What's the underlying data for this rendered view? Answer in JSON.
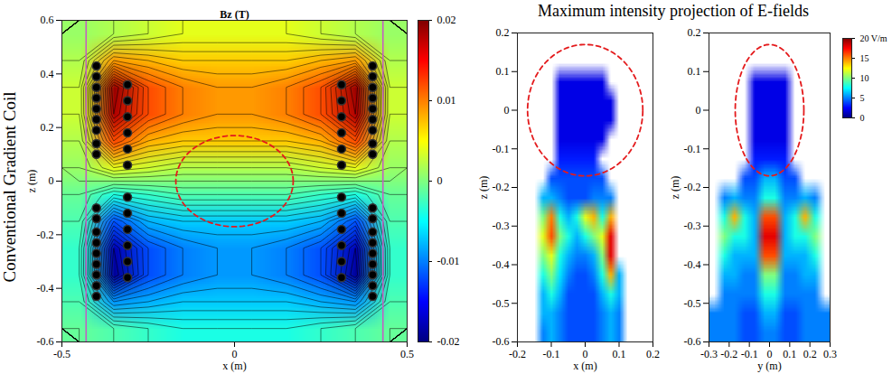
{
  "chart_data": [
    {
      "type": "heatmap",
      "row_label": "Conventional Gradient Coil",
      "title": "Bz (T)",
      "x_label": "x (m)",
      "y_label": "z (m)",
      "xlim": [
        -0.5,
        0.5
      ],
      "ylim": [
        -0.6,
        0.6
      ],
      "xticks": [
        -0.5,
        0,
        0.5
      ],
      "yticks": [
        -0.6,
        -0.4,
        -0.2,
        0,
        0.2,
        0.4,
        0.6
      ],
      "color_range": [
        -0.02,
        0.02
      ],
      "color_ticks": [
        -0.02,
        -0.01,
        0,
        0.01,
        0.02
      ],
      "cells": {
        "col_centers": [
          -0.45,
          -0.35,
          -0.25,
          -0.15,
          -0.05,
          0.05,
          0.15,
          0.25,
          0.35,
          0.45
        ],
        "row_centers": [
          0.55,
          0.45,
          0.35,
          0.25,
          0.15,
          0.05,
          -0.05,
          -0.15,
          -0.25,
          -0.35,
          -0.45,
          -0.55
        ],
        "values": [
          [
            0.001,
            0.002,
            0.003,
            0.004,
            0.004,
            0.004,
            0.004,
            0.003,
            0.002,
            0.001
          ],
          [
            0.002,
            0.009,
            0.008,
            0.007,
            0.007,
            0.007,
            0.007,
            0.008,
            0.009,
            0.002
          ],
          [
            0.003,
            0.019,
            0.012,
            0.01,
            0.009,
            0.009,
            0.01,
            0.012,
            0.019,
            0.003
          ],
          [
            0.003,
            0.018,
            0.012,
            0.01,
            0.009,
            0.009,
            0.01,
            0.012,
            0.018,
            0.003
          ],
          [
            0.002,
            0.012,
            0.008,
            0.007,
            0.007,
            0.007,
            0.007,
            0.008,
            0.012,
            0.002
          ],
          [
            0.001,
            0.004,
            0.003,
            0.002,
            0.002,
            0.002,
            0.002,
            0.003,
            0.004,
            0.001
          ],
          [
            -0.001,
            -0.004,
            -0.003,
            -0.002,
            -0.002,
            -0.002,
            -0.002,
            -0.003,
            -0.004,
            -0.001
          ],
          [
            -0.002,
            -0.012,
            -0.008,
            -0.007,
            -0.007,
            -0.007,
            -0.007,
            -0.008,
            -0.012,
            -0.002
          ],
          [
            -0.003,
            -0.018,
            -0.012,
            -0.01,
            -0.009,
            -0.009,
            -0.01,
            -0.012,
            -0.018,
            -0.003
          ],
          [
            -0.003,
            -0.019,
            -0.012,
            -0.01,
            -0.009,
            -0.009,
            -0.01,
            -0.012,
            -0.019,
            -0.003
          ],
          [
            -0.002,
            -0.009,
            -0.008,
            -0.007,
            -0.007,
            -0.007,
            -0.007,
            -0.008,
            -0.009,
            -0.002
          ],
          [
            -0.001,
            -0.002,
            -0.003,
            -0.004,
            -0.004,
            -0.004,
            -0.004,
            -0.003,
            -0.002,
            -0.001
          ]
        ]
      },
      "coil_wires": [
        [
          -0.4,
          0.43
        ],
        [
          -0.4,
          0.39
        ],
        [
          -0.4,
          0.35
        ],
        [
          -0.4,
          0.31
        ],
        [
          -0.4,
          0.27
        ],
        [
          -0.4,
          0.23
        ],
        [
          -0.4,
          0.19
        ],
        [
          -0.4,
          0.14
        ],
        [
          -0.4,
          0.1
        ],
        [
          0.4,
          0.43
        ],
        [
          0.4,
          0.39
        ],
        [
          0.4,
          0.35
        ],
        [
          0.4,
          0.31
        ],
        [
          0.4,
          0.27
        ],
        [
          0.4,
          0.23
        ],
        [
          0.4,
          0.19
        ],
        [
          0.4,
          0.14
        ],
        [
          0.4,
          0.1
        ],
        [
          -0.4,
          -0.43
        ],
        [
          -0.4,
          -0.39
        ],
        [
          -0.4,
          -0.35
        ],
        [
          -0.4,
          -0.31
        ],
        [
          -0.4,
          -0.27
        ],
        [
          -0.4,
          -0.23
        ],
        [
          -0.4,
          -0.19
        ],
        [
          -0.4,
          -0.14
        ],
        [
          -0.4,
          -0.1
        ],
        [
          0.4,
          -0.43
        ],
        [
          0.4,
          -0.39
        ],
        [
          0.4,
          -0.35
        ],
        [
          0.4,
          -0.31
        ],
        [
          0.4,
          -0.27
        ],
        [
          0.4,
          -0.23
        ],
        [
          0.4,
          -0.19
        ],
        [
          0.4,
          -0.14
        ],
        [
          0.4,
          -0.1
        ],
        [
          -0.31,
          0.36
        ],
        [
          -0.31,
          0.3
        ],
        [
          -0.31,
          0.24
        ],
        [
          -0.31,
          0.18
        ],
        [
          -0.31,
          0.12
        ],
        [
          -0.31,
          0.06
        ],
        [
          0.31,
          0.36
        ],
        [
          0.31,
          0.3
        ],
        [
          0.31,
          0.24
        ],
        [
          0.31,
          0.18
        ],
        [
          0.31,
          0.12
        ],
        [
          0.31,
          0.06
        ],
        [
          -0.31,
          -0.36
        ],
        [
          -0.31,
          -0.3
        ],
        [
          -0.31,
          -0.24
        ],
        [
          -0.31,
          -0.18
        ],
        [
          -0.31,
          -0.12
        ],
        [
          -0.31,
          -0.06
        ],
        [
          0.31,
          -0.36
        ],
        [
          0.31,
          -0.3
        ],
        [
          0.31,
          -0.24
        ],
        [
          0.31,
          -0.18
        ],
        [
          0.31,
          -0.12
        ],
        [
          0.31,
          -0.06
        ]
      ],
      "coil_boundary_x": [
        -0.43,
        0.43
      ],
      "circle": {
        "center": [
          0,
          0
        ],
        "radius": 0.17
      }
    },
    {
      "type": "heatmap",
      "title": "Maximum intensity projection of E-fields",
      "x_label": "x (m)",
      "y_label": "z (m)",
      "xlim": [
        -0.2,
        0.2
      ],
      "ylim": [
        -0.6,
        0.2
      ],
      "xticks": [
        -0.2,
        -0.1,
        0,
        0.1,
        0.2
      ],
      "yticks": [
        -0.6,
        -0.5,
        -0.4,
        -0.3,
        -0.2,
        -0.1,
        0,
        0.1,
        0.2
      ],
      "color_range": [
        0,
        20
      ],
      "cells": {
        "col_centers": [
          -0.175,
          -0.15,
          -0.125,
          -0.1,
          -0.075,
          -0.05,
          -0.025,
          0,
          0.025,
          0.05,
          0.075,
          0.1,
          0.125,
          0.15,
          0.175
        ],
        "row_centers": [
          0.175,
          0.125,
          0.075,
          0.025,
          -0.025,
          -0.075,
          -0.125,
          -0.175,
          -0.225,
          -0.275,
          -0.325,
          -0.375,
          -0.425,
          -0.475,
          -0.525,
          -0.575
        ],
        "values": [
          [
            null,
            null,
            null,
            null,
            null,
            null,
            null,
            null,
            null,
            null,
            null,
            null,
            null,
            null,
            null
          ],
          [
            null,
            null,
            null,
            null,
            null,
            null,
            null,
            null,
            null,
            null,
            null,
            null,
            null,
            null,
            null
          ],
          [
            null,
            null,
            null,
            null,
            2,
            2,
            2,
            2,
            2,
            2,
            null,
            null,
            null,
            null,
            null
          ],
          [
            null,
            null,
            null,
            null,
            2,
            2,
            2,
            2,
            2,
            2,
            2,
            null,
            null,
            null,
            null
          ],
          [
            null,
            null,
            null,
            null,
            2,
            2,
            2,
            2,
            2,
            2,
            2,
            null,
            null,
            null,
            null
          ],
          [
            null,
            null,
            null,
            null,
            2,
            2,
            2,
            2,
            2,
            2,
            null,
            null,
            null,
            null,
            null
          ],
          [
            null,
            null,
            null,
            null,
            3,
            3,
            3,
            3,
            3,
            null,
            null,
            null,
            null,
            null,
            null
          ],
          [
            null,
            null,
            null,
            4,
            4,
            4,
            4,
            4,
            4,
            4,
            null,
            null,
            null,
            null,
            null
          ],
          [
            null,
            null,
            6,
            6,
            5,
            4,
            4,
            4,
            5,
            5,
            5,
            null,
            null,
            null,
            null
          ],
          [
            null,
            null,
            10,
            15,
            8,
            6,
            8,
            12,
            14,
            8,
            14,
            null,
            null,
            null,
            null
          ],
          [
            null,
            null,
            12,
            16,
            10,
            8,
            6,
            8,
            10,
            12,
            18,
            null,
            null,
            null,
            null
          ],
          [
            null,
            null,
            10,
            12,
            8,
            6,
            5,
            5,
            6,
            10,
            18,
            null,
            null,
            null,
            null
          ],
          [
            null,
            null,
            8,
            10,
            7,
            5,
            4,
            4,
            5,
            8,
            14,
            6,
            null,
            null,
            null
          ],
          [
            null,
            null,
            6,
            8,
            6,
            4,
            4,
            4,
            4,
            6,
            8,
            6,
            null,
            null,
            null
          ],
          [
            null,
            null,
            6,
            6,
            5,
            4,
            4,
            4,
            4,
            5,
            6,
            5,
            null,
            null,
            null
          ],
          [
            null,
            null,
            5,
            6,
            5,
            4,
            4,
            4,
            4,
            5,
            6,
            5,
            null,
            null,
            null
          ]
        ]
      },
      "circle": {
        "center": [
          0,
          0
        ],
        "radius": 0.17
      }
    },
    {
      "type": "heatmap",
      "x_label": "y (m)",
      "y_label": "z (m)",
      "xlim": [
        -0.3,
        0.3
      ],
      "ylim": [
        -0.6,
        0.2
      ],
      "xticks": [
        -0.3,
        -0.2,
        -0.1,
        0,
        0.1,
        0.2,
        0.3
      ],
      "yticks": [
        -0.6,
        -0.5,
        -0.4,
        -0.3,
        -0.2,
        -0.1,
        0,
        0.1,
        0.2
      ],
      "color_range": [
        0,
        20
      ],
      "color_ticks": [
        0,
        5,
        10,
        15,
        {
          "value": 20,
          "label": "20 V/m"
        }
      ],
      "cells": {
        "col_centers": [
          -0.275,
          -0.225,
          -0.175,
          -0.125,
          -0.075,
          -0.025,
          0.025,
          0.075,
          0.125,
          0.175,
          0.225,
          0.275
        ],
        "row_centers": [
          0.175,
          0.125,
          0.075,
          0.025,
          -0.025,
          -0.075,
          -0.125,
          -0.175,
          -0.225,
          -0.275,
          -0.325,
          -0.375,
          -0.425,
          -0.475,
          -0.525,
          -0.575
        ],
        "values": [
          [
            null,
            null,
            null,
            null,
            null,
            null,
            null,
            null,
            null,
            null,
            null,
            null
          ],
          [
            null,
            null,
            null,
            null,
            null,
            null,
            null,
            null,
            null,
            null,
            null,
            null
          ],
          [
            null,
            null,
            null,
            null,
            2,
            2,
            2,
            2,
            null,
            null,
            null,
            null
          ],
          [
            null,
            null,
            null,
            null,
            2,
            2,
            2,
            2,
            null,
            null,
            null,
            null
          ],
          [
            null,
            null,
            null,
            null,
            2,
            2,
            2,
            2,
            null,
            null,
            null,
            null
          ],
          [
            null,
            null,
            null,
            null,
            2,
            2,
            2,
            2,
            null,
            null,
            null,
            null
          ],
          [
            null,
            null,
            null,
            null,
            3,
            3,
            3,
            3,
            null,
            null,
            null,
            null
          ],
          [
            null,
            null,
            null,
            4,
            4,
            6,
            6,
            4,
            4,
            null,
            null,
            null
          ],
          [
            null,
            5,
            6,
            5,
            5,
            8,
            8,
            5,
            5,
            6,
            5,
            null
          ],
          [
            null,
            8,
            14,
            8,
            6,
            16,
            16,
            6,
            8,
            14,
            8,
            null
          ],
          [
            null,
            10,
            8,
            8,
            6,
            18,
            18,
            6,
            8,
            8,
            10,
            null
          ],
          [
            null,
            8,
            6,
            6,
            6,
            16,
            16,
            6,
            6,
            6,
            8,
            null
          ],
          [
            null,
            6,
            6,
            5,
            5,
            10,
            10,
            5,
            5,
            6,
            6,
            null
          ],
          [
            null,
            5,
            5,
            5,
            5,
            8,
            8,
            5,
            5,
            5,
            5,
            null
          ],
          [
            5,
            5,
            5,
            4,
            4,
            6,
            6,
            4,
            4,
            5,
            5,
            5
          ],
          [
            5,
            5,
            5,
            4,
            4,
            5,
            5,
            4,
            4,
            5,
            5,
            5
          ]
        ]
      },
      "circle": {
        "center": [
          0,
          0
        ],
        "radius": 0.17
      }
    }
  ]
}
